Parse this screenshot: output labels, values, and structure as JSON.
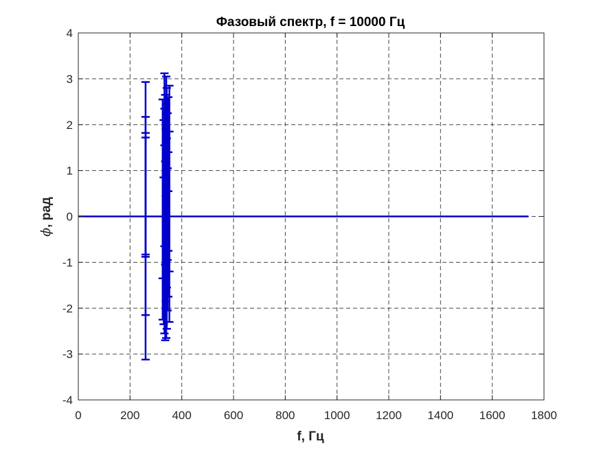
{
  "chart_data": {
    "type": "stem",
    "title": "Фазовый спектр, f = 10000 Гц",
    "xlabel": "f, Гц",
    "ylabel_symbol": "ϕ",
    "ylabel_text": ", рад",
    "xlim": [
      0,
      1800
    ],
    "ylim": [
      -4,
      4
    ],
    "xticks": [
      "0",
      "200",
      "400",
      "600",
      "800",
      "1000",
      "1200",
      "1400",
      "1600",
      "1800"
    ],
    "yticks": [
      "4",
      "3",
      "2",
      "1",
      "0",
      "-1",
      "-2",
      "-3",
      "-4"
    ],
    "grid": true,
    "grid_style": "dashed",
    "series_color": "#0000CC",
    "baseline_end": 1740,
    "series": [
      {
        "values": [
          {
            "x": 260,
            "y": 2.93
          },
          {
            "x": 260,
            "y": 2.17
          },
          {
            "x": 260,
            "y": 1.82
          },
          {
            "x": 260,
            "y": 1.72
          },
          {
            "x": 260,
            "y": -0.83
          },
          {
            "x": 260,
            "y": -0.88
          },
          {
            "x": 260,
            "y": -2.15
          },
          {
            "x": 260,
            "y": -3.12
          },
          {
            "x": 326,
            "y": 2.55
          },
          {
            "x": 326,
            "y": -1.35
          },
          {
            "x": 326,
            "y": -2.25
          },
          {
            "x": 330,
            "y": 2.1
          },
          {
            "x": 330,
            "y": 0.85
          },
          {
            "x": 330,
            "y": -2.35
          },
          {
            "x": 333,
            "y": 3.12
          },
          {
            "x": 333,
            "y": 2.35
          },
          {
            "x": 333,
            "y": 1.55
          },
          {
            "x": 333,
            "y": -0.65
          },
          {
            "x": 333,
            "y": -2.55
          },
          {
            "x": 336,
            "y": 2.65
          },
          {
            "x": 336,
            "y": 1.2
          },
          {
            "x": 336,
            "y": -1.05
          },
          {
            "x": 336,
            "y": -2.7
          },
          {
            "x": 338,
            "y": 1.9
          },
          {
            "x": 338,
            "y": 0.45
          },
          {
            "x": 338,
            "y": -1.85
          },
          {
            "x": 340,
            "y": 3.05
          },
          {
            "x": 340,
            "y": 2.45
          },
          {
            "x": 340,
            "y": 0.65
          },
          {
            "x": 340,
            "y": -0.35
          },
          {
            "x": 340,
            "y": -2.65
          },
          {
            "x": 342,
            "y": 2.8
          },
          {
            "x": 342,
            "y": 1.7
          },
          {
            "x": 342,
            "y": -1.55
          },
          {
            "x": 342,
            "y": -2.45
          },
          {
            "x": 345,
            "y": 2.25
          },
          {
            "x": 345,
            "y": 1.05
          },
          {
            "x": 345,
            "y": -0.95
          },
          {
            "x": 345,
            "y": -2.05
          },
          {
            "x": 348,
            "y": 2.6
          },
          {
            "x": 348,
            "y": 1.4
          },
          {
            "x": 348,
            "y": 0.55
          },
          {
            "x": 348,
            "y": -0.75
          },
          {
            "x": 348,
            "y": -1.75
          },
          {
            "x": 352,
            "y": 2.85
          },
          {
            "x": 352,
            "y": 1.85
          },
          {
            "x": 352,
            "y": -1.2
          },
          {
            "x": 352,
            "y": -2.3
          }
        ]
      }
    ]
  }
}
